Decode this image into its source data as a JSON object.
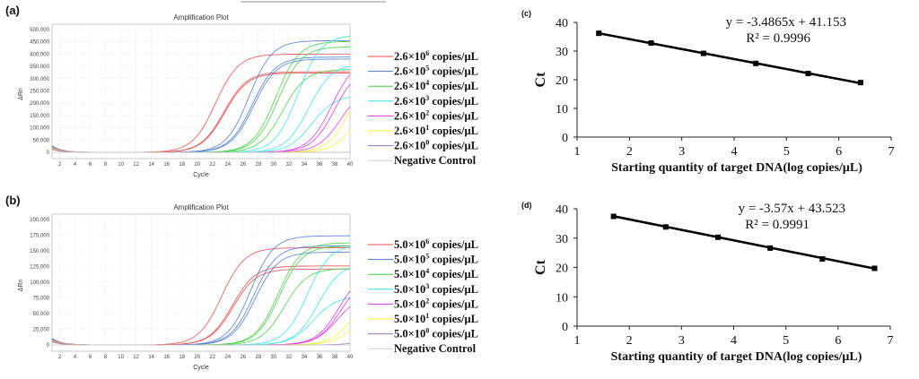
{
  "chart_data": [
    {
      "panel": "(a)",
      "type": "line",
      "title": "Amplification Plot",
      "xlabel": "Cycle",
      "ylabel": "ΔRn",
      "xlim": [
        1,
        40
      ],
      "ylim": [
        0,
        500000
      ],
      "xticks": [
        2,
        4,
        6,
        8,
        10,
        12,
        14,
        16,
        18,
        20,
        22,
        24,
        26,
        28,
        30,
        32,
        34,
        36,
        38,
        40
      ],
      "yticks": [
        0,
        50000,
        100000,
        150000,
        200000,
        250000,
        300000,
        350000,
        400000,
        450000,
        500000
      ],
      "ytick_labels": [
        "0",
        "50,000",
        "100,000",
        "150,000",
        "200,000",
        "250,000",
        "300,000",
        "350,000",
        "400,000",
        "450,000",
        "500,000"
      ],
      "grid": true,
      "legend_position": "right",
      "curve_model": "sigmoid replicates: [midpoint cycle, plateau ΔRn]",
      "series": [
        {
          "name": "2.6×10^6 copies/μL",
          "label_base": "2.6×10",
          "exp": "6",
          "unit": " copies/μL",
          "color": "#e8474a",
          "replicates": [
            [
              22.4,
              400000
            ],
            [
              23.5,
              328000
            ],
            [
              23.6,
              323000
            ]
          ]
        },
        {
          "name": "2.6×10^5 copies/μL",
          "label_base": "2.6×10",
          "exp": "5",
          "unit": " copies/μL",
          "color": "#4a78d6",
          "replicates": [
            [
              26.8,
              455000
            ],
            [
              27.2,
              388000
            ],
            [
              27.4,
              380000
            ]
          ]
        },
        {
          "name": "2.6×10^4 copies/μL",
          "label_base": "2.6×10",
          "exp": "4",
          "unit": " copies/μL",
          "color": "#3dd43d",
          "replicates": [
            [
              30.3,
              452000
            ],
            [
              30.6,
              430000
            ],
            [
              31.2,
              338000
            ]
          ]
        },
        {
          "name": "2.6×10^3 copies/μL",
          "label_base": "2.6×10",
          "exp": "3",
          "unit": " copies/μL",
          "color": "#33e6e6",
          "replicates": [
            [
              33.2,
              478000
            ],
            [
              34.6,
              360000
            ],
            [
              35.0,
              232000
            ]
          ]
        },
        {
          "name": "2.6×10^2 copies/μL",
          "label_base": "2.6×10",
          "exp": "2",
          "unit": " copies/μL",
          "color": "#e030e0",
          "replicates": [
            [
              37.6,
              380000
            ],
            [
              38.0,
              350000
            ],
            [
              38.8,
              270000
            ]
          ]
        },
        {
          "name": "2.6×10^1 copies/μL",
          "label_base": "2.6×10",
          "exp": "1",
          "unit": " copies/μL",
          "color": "#f2f230",
          "replicates": [
            [
              40.3,
              380000
            ],
            [
              41.2,
              300000
            ]
          ]
        },
        {
          "name": "2.6×10^0 copies/μL",
          "label_base": "2.6×10",
          "exp": "0",
          "unit": " copies/μL",
          "color": "#9a6fb0",
          "replicates": [
            [
              60,
              4000
            ]
          ]
        },
        {
          "name": "Negative Control",
          "label_base": "Negative Control",
          "exp": "",
          "unit": "",
          "color": "#cfcfcf",
          "replicates": [
            [
              80,
              0
            ]
          ]
        }
      ]
    },
    {
      "panel": "(b)",
      "type": "line",
      "title": "Amplification Plot",
      "xlabel": "Cycle",
      "ylabel": "ΔRn",
      "xlim": [
        1,
        40
      ],
      "ylim": [
        0,
        200000
      ],
      "xticks": [
        2,
        4,
        6,
        8,
        10,
        12,
        14,
        16,
        18,
        20,
        22,
        24,
        26,
        28,
        30,
        32,
        34,
        36,
        38,
        40
      ],
      "yticks": [
        0,
        25000,
        50000,
        75000,
        100000,
        125000,
        150000,
        175000,
        200000
      ],
      "ytick_labels": [
        "0",
        "25,000",
        "50,000",
        "75,000",
        "100,000",
        "125,000",
        "150,000",
        "175,000",
        "200,000"
      ],
      "grid": true,
      "legend_position": "right",
      "curve_model": "sigmoid replicates: [midpoint cycle, plateau ΔRn]",
      "series": [
        {
          "name": "5.0×10^6 copies/μL",
          "label_base": "5.0×10",
          "exp": "6",
          "unit": " copies/μL",
          "color": "#e8474a",
          "replicates": [
            [
              23.2,
              155000
            ],
            [
              24.6,
              126000
            ],
            [
              24.7,
              121000
            ]
          ]
        },
        {
          "name": "5.0×10^5 copies/μL",
          "label_base": "5.0×10",
          "exp": "5",
          "unit": " copies/μL",
          "color": "#4a78d6",
          "replicates": [
            [
              27.0,
              174000
            ],
            [
              27.4,
              158000
            ],
            [
              27.6,
              148000
            ]
          ]
        },
        {
          "name": "5.0×10^4 copies/μL",
          "label_base": "5.0×10",
          "exp": "4",
          "unit": " copies/μL",
          "color": "#3dd43d",
          "replicates": [
            [
              30.6,
              163000
            ],
            [
              30.8,
              158000
            ],
            [
              31.4,
              122000
            ]
          ]
        },
        {
          "name": "5.0×10^3 copies/μL",
          "label_base": "5.0×10",
          "exp": "3",
          "unit": " copies/μL",
          "color": "#33e6e6",
          "replicates": [
            [
              34.4,
              160000
            ],
            [
              35.8,
              130000
            ],
            [
              35.2,
              78000
            ]
          ]
        },
        {
          "name": "5.0×10^2 copies/μL",
          "label_base": "5.0×10",
          "exp": "2",
          "unit": " copies/μL",
          "color": "#e030e0",
          "replicates": [
            [
              38.6,
              120000
            ],
            [
              38.8,
              110000
            ],
            [
              38.4,
              82000
            ]
          ]
        },
        {
          "name": "5.0×10^1 copies/μL",
          "label_base": "5.0×10",
          "exp": "1",
          "unit": " copies/μL",
          "color": "#f2f230",
          "replicates": [
            [
              40.5,
              90000
            ],
            [
              41.0,
              70000
            ]
          ]
        },
        {
          "name": "5.0×10^0 copies/μL",
          "label_base": "5.0×10",
          "exp": "0",
          "unit": " copies/μL",
          "color": "#9a6fb0",
          "replicates": [
            [
              44,
              40000
            ]
          ]
        },
        {
          "name": "Negative Control",
          "label_base": "Negative Control",
          "exp": "",
          "unit": "",
          "color": "#cfcfcf",
          "replicates": [
            [
              80,
              0
            ]
          ]
        }
      ]
    },
    {
      "panel": "(c)",
      "type": "scatter",
      "xlabel": "Starting quantity of target DNA(log copies/μL)",
      "ylabel": "Ct",
      "xlim": [
        1,
        7
      ],
      "ylim": [
        0,
        40
      ],
      "xticks": [
        1,
        2,
        3,
        4,
        5,
        6,
        7
      ],
      "yticks": [
        0,
        10,
        20,
        30,
        40
      ],
      "grid": false,
      "x": [
        1.415,
        2.415,
        3.415,
        4.415,
        5.415,
        6.415
      ],
      "y": [
        36.2,
        32.8,
        29.2,
        25.7,
        22.2,
        19.0
      ],
      "trendline": {
        "slope": -3.4865,
        "intercept": 41.153
      },
      "equation": "y = -3.4865x  + 41.153",
      "r2": "R² = 0.9996"
    },
    {
      "panel": "(d)",
      "type": "scatter",
      "xlabel": "Starting quantity of target DNA(log copies/μL)",
      "ylabel": "Ct",
      "xlim": [
        1,
        7
      ],
      "ylim": [
        0,
        40
      ],
      "xticks": [
        1,
        2,
        3,
        4,
        5,
        6,
        7
      ],
      "yticks": [
        0,
        10,
        20,
        30,
        40
      ],
      "grid": false,
      "x": [
        1.699,
        2.699,
        3.699,
        4.699,
        5.699,
        6.699
      ],
      "y": [
        37.4,
        33.8,
        30.3,
        26.6,
        22.9,
        19.7
      ],
      "trendline": {
        "slope": -3.57,
        "intercept": 43.523
      },
      "equation": "y = -3.57x + 43.523",
      "r2": "R² = 0.9991"
    }
  ]
}
